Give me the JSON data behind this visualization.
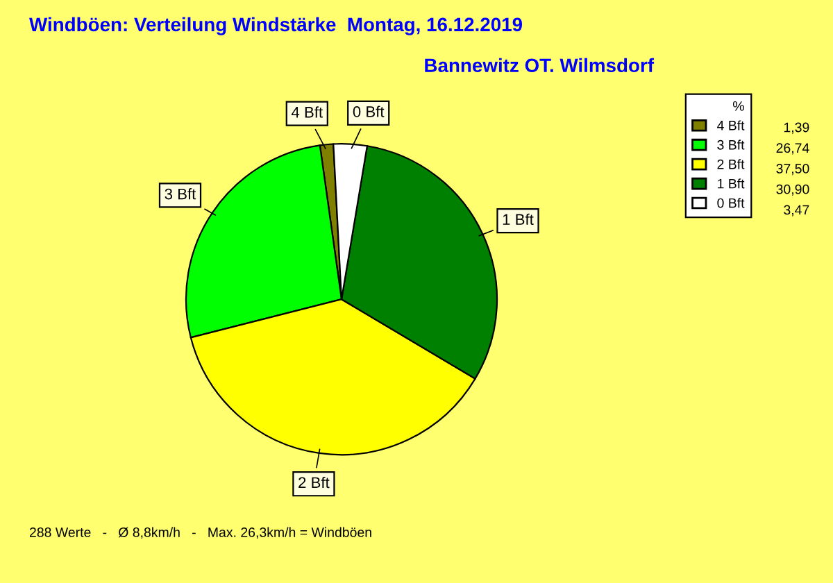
{
  "chart_data": {
    "type": "pie",
    "title": "Windböen: Verteilung Windstärke  Montag, 16.12.2019",
    "subtitle": "Bannewitz OT. Wilmsdorf",
    "categories": [
      "4 Bft",
      "3 Bft",
      "2 Bft",
      "1 Bft",
      "0 Bft"
    ],
    "values": [
      1.39,
      26.74,
      37.5,
      30.9,
      3.47
    ],
    "value_labels": [
      "1,39",
      "26,74",
      "37,50",
      "30,90",
      "3,47"
    ],
    "colors": [
      "#808000",
      "#00ff00",
      "#ffff00",
      "#008000",
      "#ffffff"
    ],
    "legend_title": "%",
    "legend": "top right",
    "annotations": [
      "288 Werte   -   Ø 8,8km/h   -   Max. 26,3km/h = Windböen"
    ]
  }
}
